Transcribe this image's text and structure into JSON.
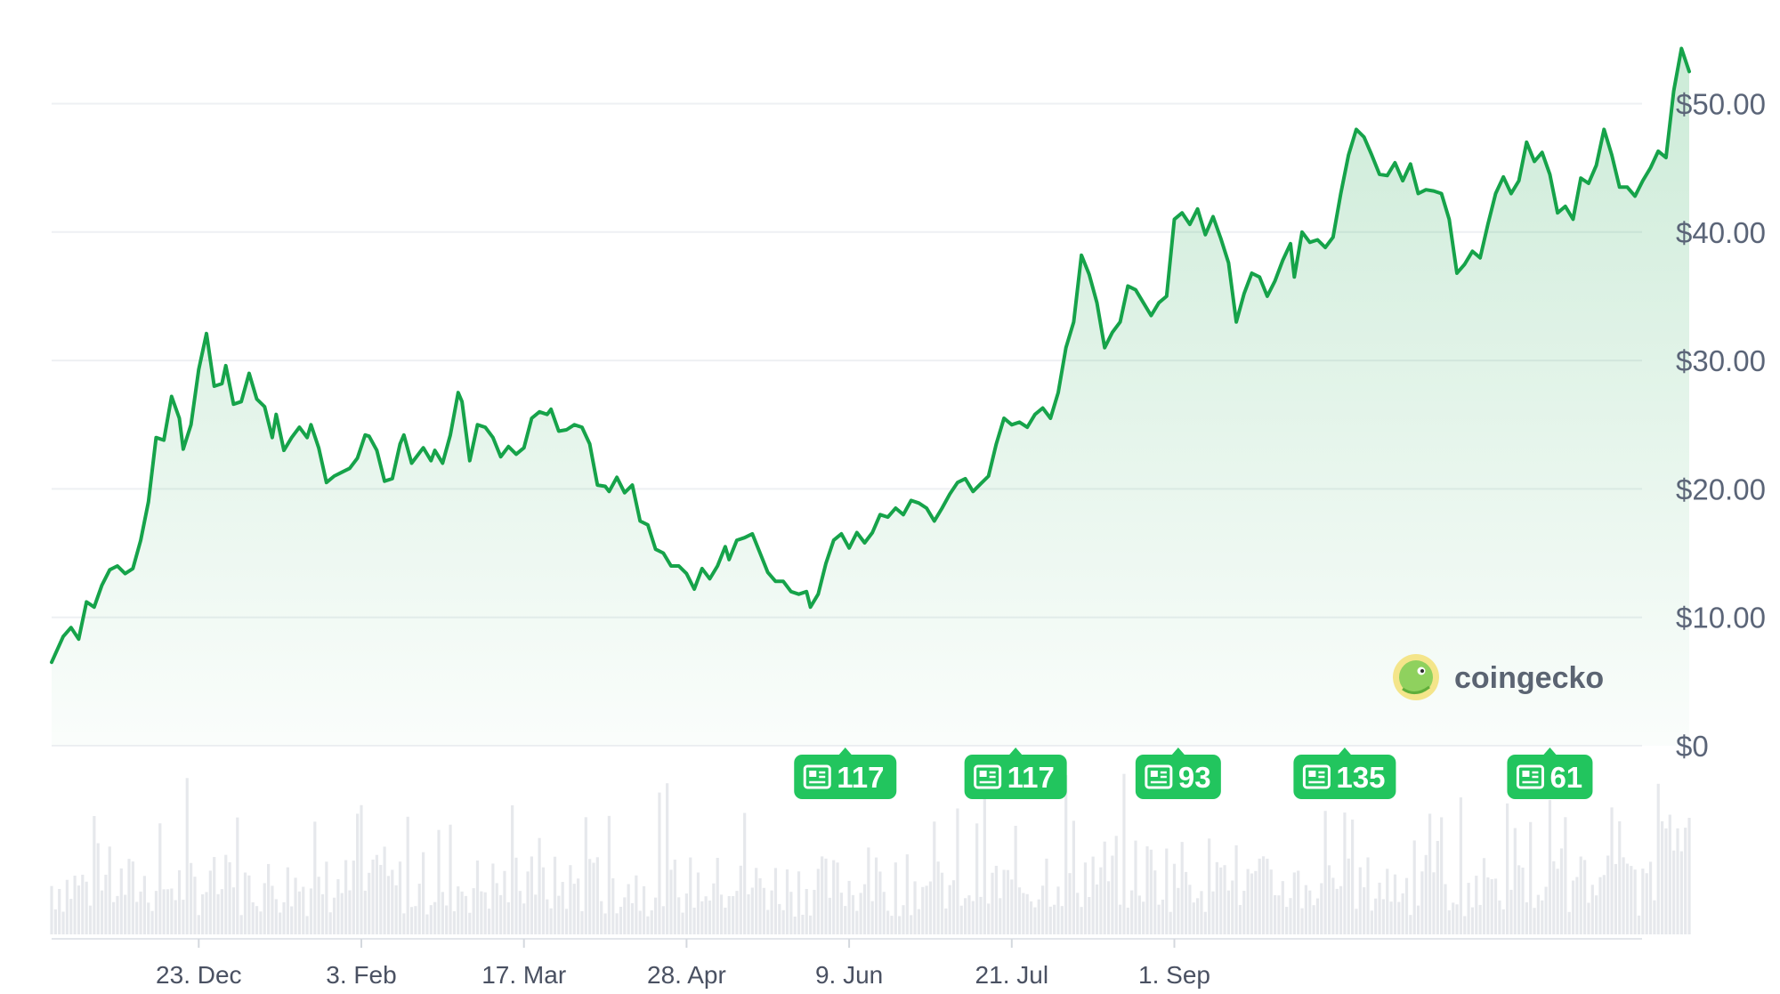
{
  "chart_data": {
    "type": "area",
    "title": "",
    "xlabel": "",
    "ylabel": "",
    "ylim": [
      0,
      55
    ],
    "y_ticks": [
      "$0",
      "$10.00",
      "$20.00",
      "$30.00",
      "$40.00",
      "$50.00"
    ],
    "y_tick_values": [
      0,
      10,
      20,
      30,
      40,
      50
    ],
    "x_ticks": [
      "23. Dec",
      "3. Feb",
      "17. Mar",
      "28. Apr",
      "9. Jun",
      "21. Jul",
      "1. Sep"
    ],
    "x_tick_days": [
      38,
      80,
      122,
      164,
      206,
      248,
      290
    ],
    "grid": true,
    "legend": "none",
    "series": [
      {
        "color": "#16a34a",
        "x_unit": "days",
        "points": [
          [
            0,
            6.5
          ],
          [
            3,
            8.5
          ],
          [
            5,
            9.2
          ],
          [
            7,
            8.3
          ],
          [
            9,
            11.2
          ],
          [
            11,
            10.8
          ],
          [
            13,
            12.5
          ],
          [
            15,
            13.7
          ],
          [
            17,
            14.0
          ],
          [
            19,
            13.4
          ],
          [
            21,
            13.8
          ],
          [
            23,
            16.0
          ],
          [
            25,
            19.0
          ],
          [
            27,
            24.0
          ],
          [
            29,
            23.8
          ],
          [
            31,
            27.2
          ],
          [
            33,
            25.5
          ],
          [
            34,
            23.1
          ],
          [
            36,
            25.0
          ],
          [
            38,
            29.3
          ],
          [
            40,
            32.1
          ],
          [
            42,
            28.0
          ],
          [
            44,
            28.2
          ],
          [
            45,
            29.6
          ],
          [
            47,
            26.6
          ],
          [
            49,
            26.8
          ],
          [
            51,
            29.0
          ],
          [
            53,
            27.0
          ],
          [
            55,
            26.4
          ],
          [
            57,
            24.0
          ],
          [
            58,
            25.8
          ],
          [
            60,
            23.0
          ],
          [
            62,
            24.0
          ],
          [
            64,
            24.8
          ],
          [
            66,
            24.0
          ],
          [
            67,
            25.0
          ],
          [
            69,
            23.2
          ],
          [
            71,
            20.5
          ],
          [
            73,
            21.0
          ],
          [
            75,
            21.3
          ],
          [
            77,
            21.6
          ],
          [
            79,
            22.4
          ],
          [
            81,
            24.2
          ],
          [
            82,
            24.1
          ],
          [
            84,
            23.0
          ],
          [
            86,
            20.6
          ],
          [
            88,
            20.8
          ],
          [
            90,
            23.5
          ],
          [
            91,
            24.2
          ],
          [
            93,
            22.0
          ],
          [
            95,
            22.8
          ],
          [
            96,
            23.2
          ],
          [
            98,
            22.2
          ],
          [
            99,
            23.0
          ],
          [
            101,
            22.0
          ],
          [
            103,
            24.2
          ],
          [
            105,
            27.5
          ],
          [
            106,
            26.8
          ],
          [
            108,
            22.2
          ],
          [
            110,
            25.0
          ],
          [
            112,
            24.8
          ],
          [
            114,
            24.0
          ],
          [
            116,
            22.5
          ],
          [
            118,
            23.3
          ],
          [
            120,
            22.7
          ],
          [
            122,
            23.2
          ],
          [
            124,
            25.5
          ],
          [
            126,
            26.0
          ],
          [
            128,
            25.8
          ],
          [
            129,
            26.2
          ],
          [
            131,
            24.5
          ],
          [
            133,
            24.6
          ],
          [
            135,
            25.0
          ],
          [
            137,
            24.8
          ],
          [
            139,
            23.5
          ],
          [
            141,
            20.3
          ],
          [
            143,
            20.2
          ],
          [
            144,
            19.8
          ],
          [
            146,
            20.9
          ],
          [
            148,
            19.7
          ],
          [
            150,
            20.3
          ],
          [
            152,
            17.5
          ],
          [
            154,
            17.2
          ],
          [
            156,
            15.3
          ],
          [
            158,
            15.0
          ],
          [
            160,
            14.0
          ],
          [
            162,
            14.0
          ],
          [
            164,
            13.4
          ],
          [
            166,
            12.2
          ],
          [
            168,
            13.8
          ],
          [
            170,
            13.0
          ],
          [
            172,
            14.0
          ],
          [
            174,
            15.5
          ],
          [
            175,
            14.5
          ],
          [
            177,
            16.0
          ],
          [
            179,
            16.2
          ],
          [
            181,
            16.5
          ],
          [
            183,
            15.0
          ],
          [
            185,
            13.5
          ],
          [
            187,
            12.8
          ],
          [
            189,
            12.8
          ],
          [
            191,
            12.0
          ],
          [
            193,
            11.8
          ],
          [
            195,
            12.0
          ],
          [
            196,
            10.8
          ],
          [
            198,
            11.8
          ],
          [
            200,
            14.2
          ],
          [
            202,
            16.0
          ],
          [
            204,
            16.5
          ],
          [
            206,
            15.4
          ],
          [
            208,
            16.6
          ],
          [
            210,
            15.8
          ],
          [
            212,
            16.6
          ],
          [
            214,
            18.0
          ],
          [
            216,
            17.8
          ],
          [
            218,
            18.5
          ],
          [
            220,
            18.0
          ],
          [
            222,
            19.1
          ],
          [
            224,
            18.9
          ],
          [
            226,
            18.5
          ],
          [
            228,
            17.5
          ],
          [
            230,
            18.5
          ],
          [
            232,
            19.6
          ],
          [
            234,
            20.5
          ],
          [
            236,
            20.8
          ],
          [
            238,
            19.8
          ],
          [
            240,
            20.4
          ],
          [
            242,
            21.0
          ],
          [
            244,
            23.5
          ],
          [
            246,
            25.5
          ],
          [
            248,
            25.0
          ],
          [
            250,
            25.2
          ],
          [
            252,
            24.8
          ],
          [
            254,
            25.8
          ],
          [
            256,
            26.3
          ],
          [
            258,
            25.5
          ],
          [
            260,
            27.5
          ],
          [
            262,
            31.0
          ],
          [
            264,
            33.0
          ],
          [
            266,
            38.2
          ],
          [
            268,
            36.7
          ],
          [
            270,
            34.5
          ],
          [
            272,
            31.0
          ],
          [
            274,
            32.2
          ],
          [
            276,
            33.0
          ],
          [
            278,
            35.8
          ],
          [
            280,
            35.5
          ],
          [
            282,
            34.5
          ],
          [
            284,
            33.5
          ],
          [
            286,
            34.5
          ],
          [
            288,
            35.0
          ],
          [
            290,
            41.0
          ],
          [
            292,
            41.5
          ],
          [
            294,
            40.6
          ],
          [
            296,
            41.8
          ],
          [
            298,
            39.8
          ],
          [
            300,
            41.2
          ],
          [
            302,
            39.5
          ],
          [
            304,
            37.6
          ],
          [
            306,
            33.0
          ],
          [
            308,
            35.2
          ],
          [
            310,
            36.8
          ],
          [
            312,
            36.5
          ],
          [
            314,
            35.0
          ],
          [
            316,
            36.2
          ],
          [
            318,
            37.8
          ],
          [
            320,
            39.1
          ],
          [
            321,
            36.5
          ],
          [
            323,
            40.0
          ],
          [
            325,
            39.2
          ],
          [
            327,
            39.4
          ],
          [
            329,
            38.8
          ],
          [
            331,
            39.6
          ],
          [
            333,
            43.0
          ],
          [
            335,
            46.0
          ],
          [
            337,
            48.0
          ],
          [
            339,
            47.4
          ],
          [
            341,
            46.0
          ],
          [
            343,
            44.5
          ],
          [
            345,
            44.4
          ],
          [
            347,
            45.4
          ],
          [
            349,
            44.0
          ],
          [
            351,
            45.3
          ],
          [
            353,
            43.0
          ],
          [
            355,
            43.3
          ],
          [
            357,
            43.2
          ],
          [
            359,
            43.0
          ],
          [
            361,
            41.0
          ],
          [
            363,
            36.8
          ],
          [
            365,
            37.5
          ],
          [
            367,
            38.5
          ],
          [
            369,
            38.0
          ],
          [
            371,
            40.6
          ],
          [
            373,
            43.0
          ],
          [
            375,
            44.3
          ],
          [
            377,
            43.0
          ],
          [
            379,
            44.0
          ],
          [
            381,
            47.0
          ],
          [
            383,
            45.5
          ],
          [
            385,
            46.2
          ],
          [
            387,
            44.5
          ],
          [
            389,
            41.5
          ],
          [
            391,
            42.0
          ],
          [
            393,
            41.0
          ],
          [
            395,
            44.2
          ],
          [
            397,
            43.8
          ],
          [
            399,
            45.2
          ],
          [
            401,
            48.0
          ],
          [
            403,
            46.0
          ],
          [
            405,
            43.5
          ],
          [
            407,
            43.5
          ],
          [
            409,
            42.8
          ],
          [
            411,
            44.0
          ],
          [
            413,
            45.0
          ],
          [
            415,
            46.3
          ],
          [
            417,
            45.8
          ],
          [
            419,
            51.0
          ],
          [
            421,
            54.3
          ],
          [
            423,
            52.5
          ]
        ]
      }
    ],
    "annotations": [
      {
        "label": "117",
        "day": 205
      },
      {
        "label": "117",
        "day": 249
      },
      {
        "label": "93",
        "day": 291
      },
      {
        "label": "135",
        "day": 334
      },
      {
        "label": "61",
        "day": 387
      }
    ],
    "volume_note": "volume bars shown without axis values"
  },
  "watermark": {
    "text": "coingecko"
  },
  "colors": {
    "line": "#16a34a",
    "badge": "#22c55e",
    "grid": "#eef0f3",
    "volume": "#e6e8ec"
  }
}
